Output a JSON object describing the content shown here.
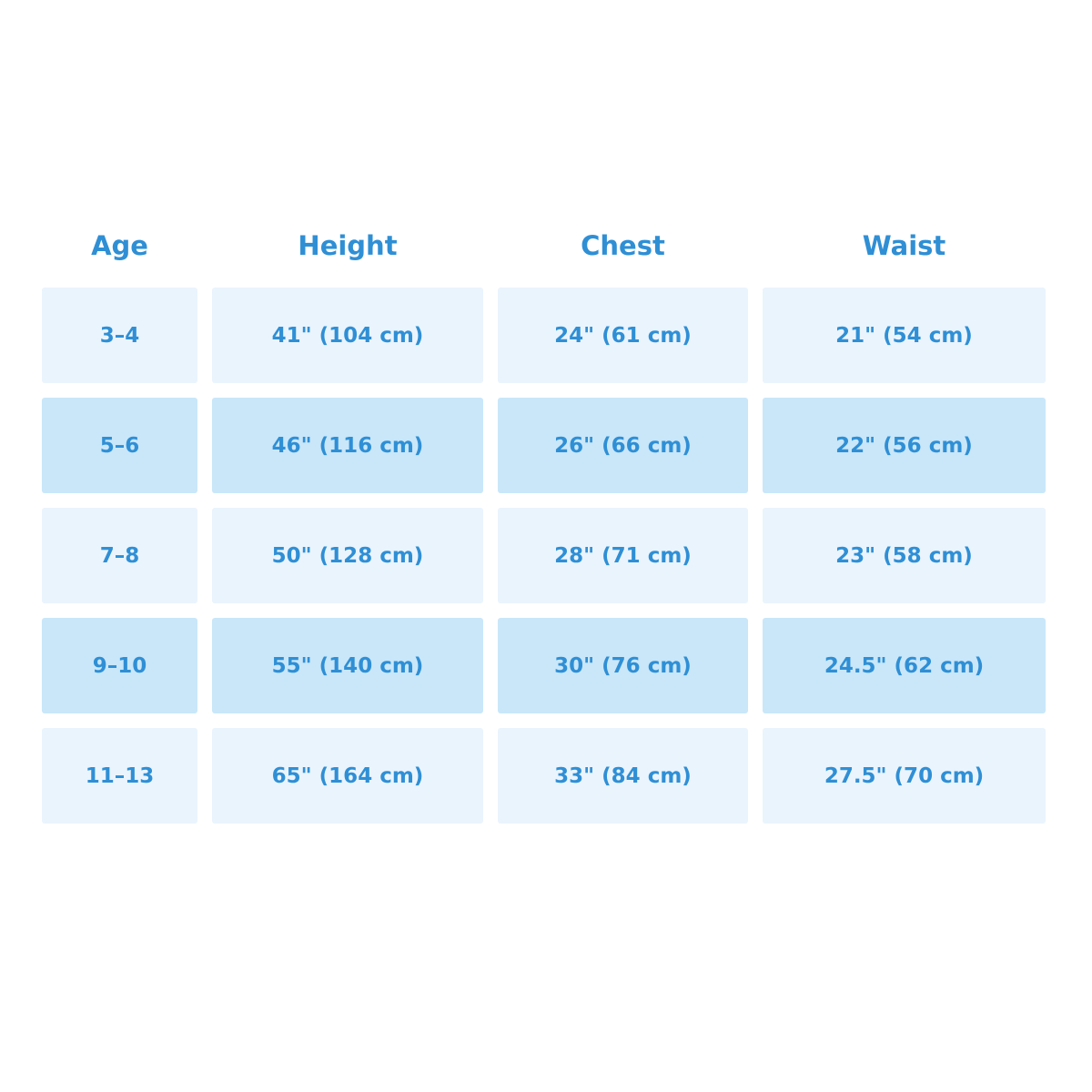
{
  "colors": {
    "text": "#2f8fd5",
    "row_light": "#eaf4fd",
    "row_dark": "#c9e7f9"
  },
  "table": {
    "headers": [
      "Age",
      "Height",
      "Chest",
      "Waist"
    ],
    "rows": [
      [
        "3–4",
        "41\" (104 cm)",
        "24\" (61 cm)",
        "21\" (54 cm)"
      ],
      [
        "5–6",
        "46\" (116 cm)",
        "26\" (66 cm)",
        "22\" (56 cm)"
      ],
      [
        "7–8",
        "50\" (128 cm)",
        "28\" (71 cm)",
        "23\" (58 cm)"
      ],
      [
        "9–10",
        "55\" (140 cm)",
        "30\" (76 cm)",
        "24.5\" (62 cm)"
      ],
      [
        "11–13",
        "65\" (164 cm)",
        "33\" (84 cm)",
        "27.5\" (70 cm)"
      ]
    ]
  }
}
